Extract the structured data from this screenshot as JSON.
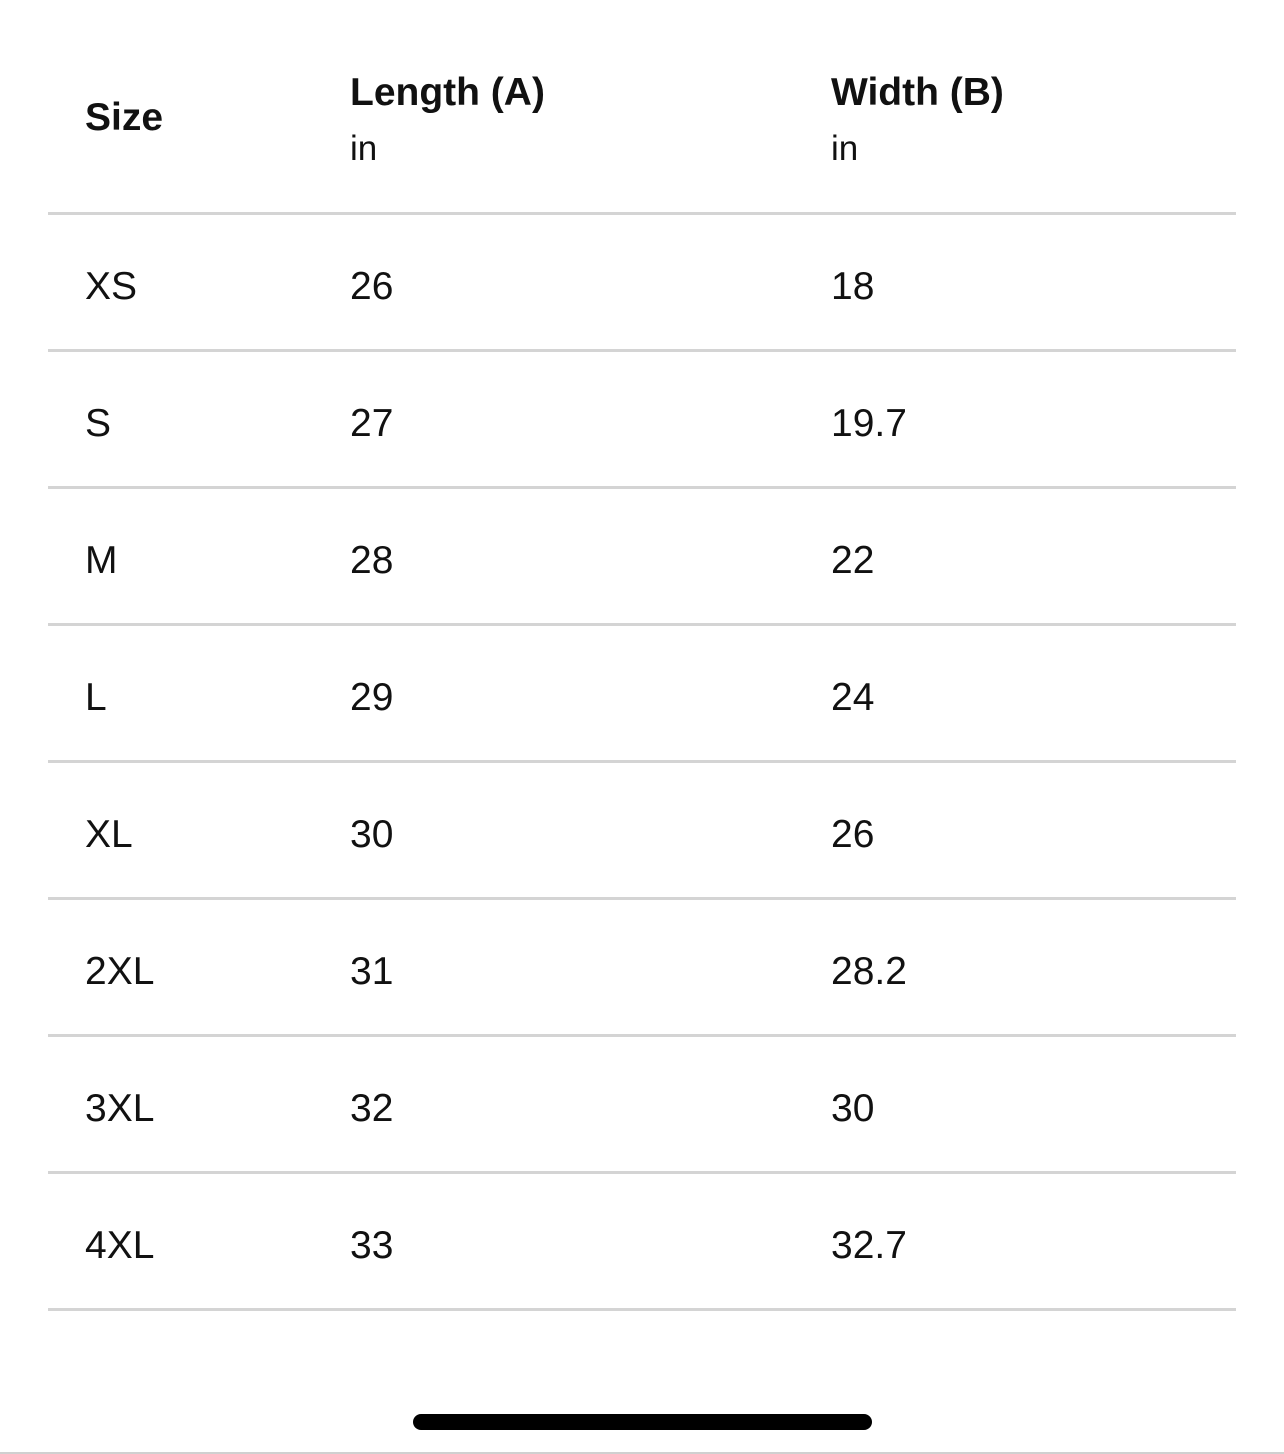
{
  "table": {
    "headers": [
      {
        "title": "Size",
        "unit": ""
      },
      {
        "title": "Length (A)",
        "unit": "in"
      },
      {
        "title": "Width (B)",
        "unit": "in"
      }
    ],
    "rows": [
      [
        "XS",
        "26",
        "18"
      ],
      [
        "S",
        "27",
        "19.7"
      ],
      [
        "M",
        "28",
        "22"
      ],
      [
        "L",
        "29",
        "24"
      ],
      [
        "XL",
        "30",
        "26"
      ],
      [
        "2XL",
        "31",
        "28.2"
      ],
      [
        "3XL",
        "32",
        "30"
      ],
      [
        "4XL",
        "33",
        "32.7"
      ]
    ]
  },
  "colors": {
    "divider": "#d4d4d4",
    "text": "#111111",
    "home_indicator": "#000000"
  }
}
